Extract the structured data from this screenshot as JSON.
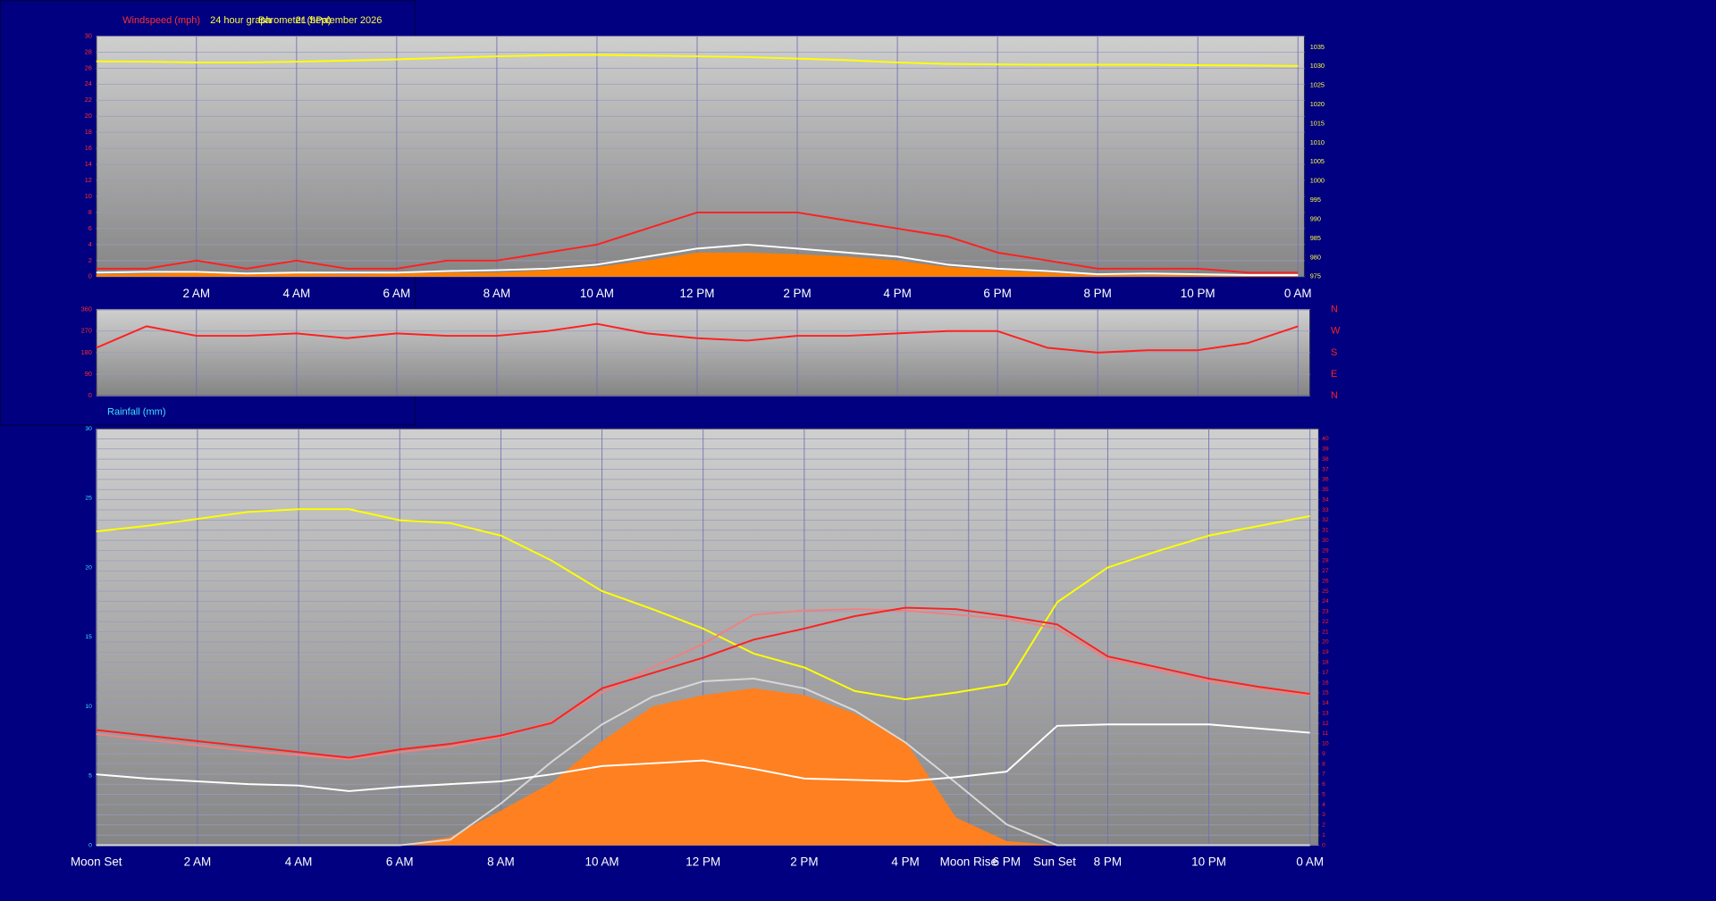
{
  "chart_data": [
    {
      "type": "line",
      "ylabel": "Windspeed (mph)",
      "title": "24 hour graph",
      "y2label": "Barometer (hPa)",
      "date": "21 September 2026",
      "xlim": [
        0,
        24
      ],
      "xticks": [
        {
          "value": 2,
          "label": "2 AM"
        },
        {
          "value": 4,
          "label": "4 AM"
        },
        {
          "value": 6,
          "label": "6 AM"
        },
        {
          "value": 8,
          "label": "8 AM"
        },
        {
          "value": 10,
          "label": "10 AM"
        },
        {
          "value": 12,
          "label": "12 PM"
        },
        {
          "value": 14,
          "label": "2 PM"
        },
        {
          "value": 16,
          "label": "4 PM"
        },
        {
          "value": 18,
          "label": "6 PM"
        },
        {
          "value": 20,
          "label": "8 PM"
        },
        {
          "value": 22,
          "label": "10 PM"
        },
        {
          "value": 24,
          "label": "0 AM"
        }
      ],
      "ylim": [
        0,
        30
      ],
      "yticks": [
        0,
        2,
        4,
        6,
        8,
        10,
        12,
        14,
        16,
        18,
        20,
        22,
        24,
        26,
        28,
        30
      ],
      "ytick_color": "#ff3030",
      "y2lim": [
        975,
        1037.9
      ],
      "y2ticks": [
        975,
        980,
        985,
        990,
        995,
        1000,
        1005,
        1010,
        1015,
        1020,
        1025,
        1030,
        1035
      ],
      "y2tick_color": "#ffff40",
      "grid_axis": "y",
      "x": [
        0,
        1,
        2,
        3,
        4,
        5,
        6,
        7,
        8,
        9,
        10,
        11,
        12,
        13,
        14,
        15,
        16,
        17,
        18,
        19,
        20,
        21,
        22,
        23,
        24
      ],
      "series": [
        {
          "color": "#ff8000",
          "area": true,
          "values": [
            0.3,
            0.4,
            0.5,
            0.3,
            0.4,
            0.3,
            0.4,
            0.5,
            0.5,
            0.8,
            1.2,
            2,
            3,
            3,
            2.8,
            2.5,
            2,
            1.2,
            0.8,
            0.5,
            0.2,
            0.2,
            0.2,
            0.1,
            0.1
          ]
        },
        {
          "color": "#ff2020",
          "values": [
            1,
            1,
            2,
            1,
            2,
            1,
            1,
            2,
            2,
            3,
            4,
            6,
            8,
            8,
            8,
            7,
            6,
            5,
            3,
            2,
            1,
            1,
            1,
            0.5,
            0.5
          ]
        },
        {
          "color": "#ffffff",
          "values": [
            0.5,
            0.6,
            0.6,
            0.4,
            0.5,
            0.5,
            0.5,
            0.7,
            0.8,
            1,
            1.5,
            2.5,
            3.5,
            4,
            3.5,
            3,
            2.5,
            1.5,
            1,
            0.7,
            0.3,
            0.4,
            0.3,
            0.2,
            0.2
          ]
        },
        {
          "color": "#ffff00",
          "axis": "y2",
          "values": [
            1031.3,
            1031.2,
            1031,
            1031,
            1031.2,
            1031.5,
            1031.8,
            1032.2,
            1032.6,
            1032.9,
            1033,
            1032.8,
            1032.6,
            1032.4,
            1032,
            1031.6,
            1031,
            1030.6,
            1030.5,
            1030.4,
            1030.4,
            1030.4,
            1030.3,
            1030.2,
            1030.1
          ]
        }
      ]
    },
    {
      "type": "line",
      "xlim": [
        0,
        24
      ],
      "xticks": [
        2,
        4,
        6,
        8,
        10,
        12,
        14,
        16,
        18,
        20,
        22,
        24
      ],
      "ylim": [
        0,
        360
      ],
      "yticks": [
        0,
        90,
        180,
        270,
        360
      ],
      "ytick_color": "#ff3030",
      "y2lim": [
        0,
        360
      ],
      "y2ticks": [
        {
          "value": 0,
          "label": "N"
        },
        {
          "value": 90,
          "label": "E"
        },
        {
          "value": 180,
          "label": "S"
        },
        {
          "value": 270,
          "label": "W"
        },
        {
          "value": 360,
          "label": "N"
        }
      ],
      "y2tick_color": "#ff2020",
      "grid_axis": "y",
      "x": [
        0,
        1,
        2,
        3,
        4,
        5,
        6,
        7,
        8,
        9,
        10,
        11,
        12,
        13,
        14,
        15,
        16,
        17,
        18,
        19,
        20,
        21,
        22,
        23,
        24
      ],
      "series": [
        {
          "color": "#ff2020",
          "values": [
            200,
            290,
            250,
            250,
            260,
            240,
            260,
            250,
            250,
            270,
            300,
            260,
            240,
            230,
            250,
            250,
            260,
            270,
            270,
            200,
            180,
            190,
            190,
            220,
            290
          ]
        }
      ]
    },
    {
      "type": "line",
      "title": "Rainfall (mm)",
      "xlim": [
        0,
        24
      ],
      "xticks": [
        {
          "value": 0,
          "label": "Moon Set"
        },
        {
          "value": 2,
          "label": "2 AM"
        },
        {
          "value": 4,
          "label": "4 AM"
        },
        {
          "value": 6,
          "label": "6 AM"
        },
        {
          "value": 8,
          "label": "8 AM"
        },
        {
          "value": 10,
          "label": "10 AM"
        },
        {
          "value": 12,
          "label": "12 PM"
        },
        {
          "value": 14,
          "label": "2 PM"
        },
        {
          "value": 16,
          "label": "4 PM"
        },
        {
          "value": 17.25,
          "label": "Moon Rise"
        },
        {
          "value": 18,
          "label": "6 PM"
        },
        {
          "value": 18.95,
          "label": "Sun Set"
        },
        {
          "value": 20,
          "label": "8 PM"
        },
        {
          "value": 22,
          "label": "10 PM"
        },
        {
          "value": 24,
          "label": "0 AM"
        }
      ],
      "ylim": [
        0,
        30
      ],
      "yticks": [
        0,
        5,
        10,
        15,
        20,
        25,
        30
      ],
      "ytick_color": "#40e0ff",
      "y2lim": [
        0,
        41
      ],
      "y2ticks": [
        0,
        1,
        2,
        3,
        4,
        5,
        6,
        7,
        8,
        9,
        10,
        11,
        12,
        13,
        14,
        15,
        16,
        17,
        18,
        19,
        20,
        21,
        22,
        23,
        24,
        25,
        26,
        27,
        28,
        29,
        30,
        31,
        32,
        33,
        34,
        35,
        36,
        37,
        38,
        39,
        40
      ],
      "y2tick_color": "#ff2020",
      "grid_axis": "y2",
      "x": [
        0,
        1,
        2,
        3,
        4,
        5,
        6,
        7,
        8,
        9,
        10,
        11,
        12,
        13,
        14,
        15,
        16,
        17,
        18,
        19,
        20,
        21,
        22,
        23,
        24
      ],
      "series": [
        {
          "color": "#ff8020",
          "area": true,
          "values": [
            0,
            0,
            0,
            0,
            0,
            0,
            0,
            0.6,
            2.5,
            4.5,
            7.5,
            10,
            10.8,
            11.3,
            10.8,
            9.5,
            7.5,
            2,
            0.3,
            0,
            0,
            0,
            0,
            0,
            0
          ]
        },
        {
          "color": "#d8d8d8",
          "values": [
            0,
            0,
            0,
            0,
            0,
            0,
            0,
            0.4,
            3,
            6,
            8.7,
            10.7,
            11.8,
            12,
            11.3,
            9.7,
            7.4,
            4.5,
            1.5,
            0,
            0,
            0,
            0,
            0,
            0
          ]
        },
        {
          "color": "#ffff00",
          "values": [
            22.6,
            23,
            23.5,
            24,
            24.2,
            24.2,
            23.4,
            23.2,
            22.3,
            20.5,
            18.3,
            17,
            15.6,
            13.8,
            12.8,
            11.1,
            10.5,
            11,
            11.6,
            17.5,
            20,
            21.2,
            22.3,
            23,
            23.7
          ]
        },
        {
          "color": "#f08080",
          "values": [
            8,
            7.6,
            7.2,
            6.8,
            6.5,
            6.2,
            6.7,
            7.1,
            7.8,
            8.9,
            11,
            12.8,
            14.5,
            16.6,
            16.9,
            17,
            16.9,
            16.6,
            16.3,
            15.6,
            13.4,
            12.6,
            11.8,
            11.2,
            10.8
          ]
        },
        {
          "color": "#ff2020",
          "values": [
            8.3,
            7.9,
            7.5,
            7.1,
            6.7,
            6.3,
            6.9,
            7.3,
            7.9,
            8.8,
            11.3,
            12.4,
            13.5,
            14.8,
            15.6,
            16.5,
            17.1,
            17,
            16.5,
            15.9,
            13.6,
            12.8,
            12,
            11.4,
            10.9
          ]
        },
        {
          "color": "#ffffff",
          "values": [
            5.1,
            4.8,
            4.6,
            4.4,
            4.3,
            3.9,
            4.2,
            4.4,
            4.6,
            5.1,
            5.7,
            5.9,
            6.1,
            5.5,
            4.8,
            4.7,
            4.6,
            4.9,
            5.3,
            8.6,
            8.7,
            8.7,
            8.7,
            8.4,
            8.1
          ]
        }
      ]
    }
  ]
}
